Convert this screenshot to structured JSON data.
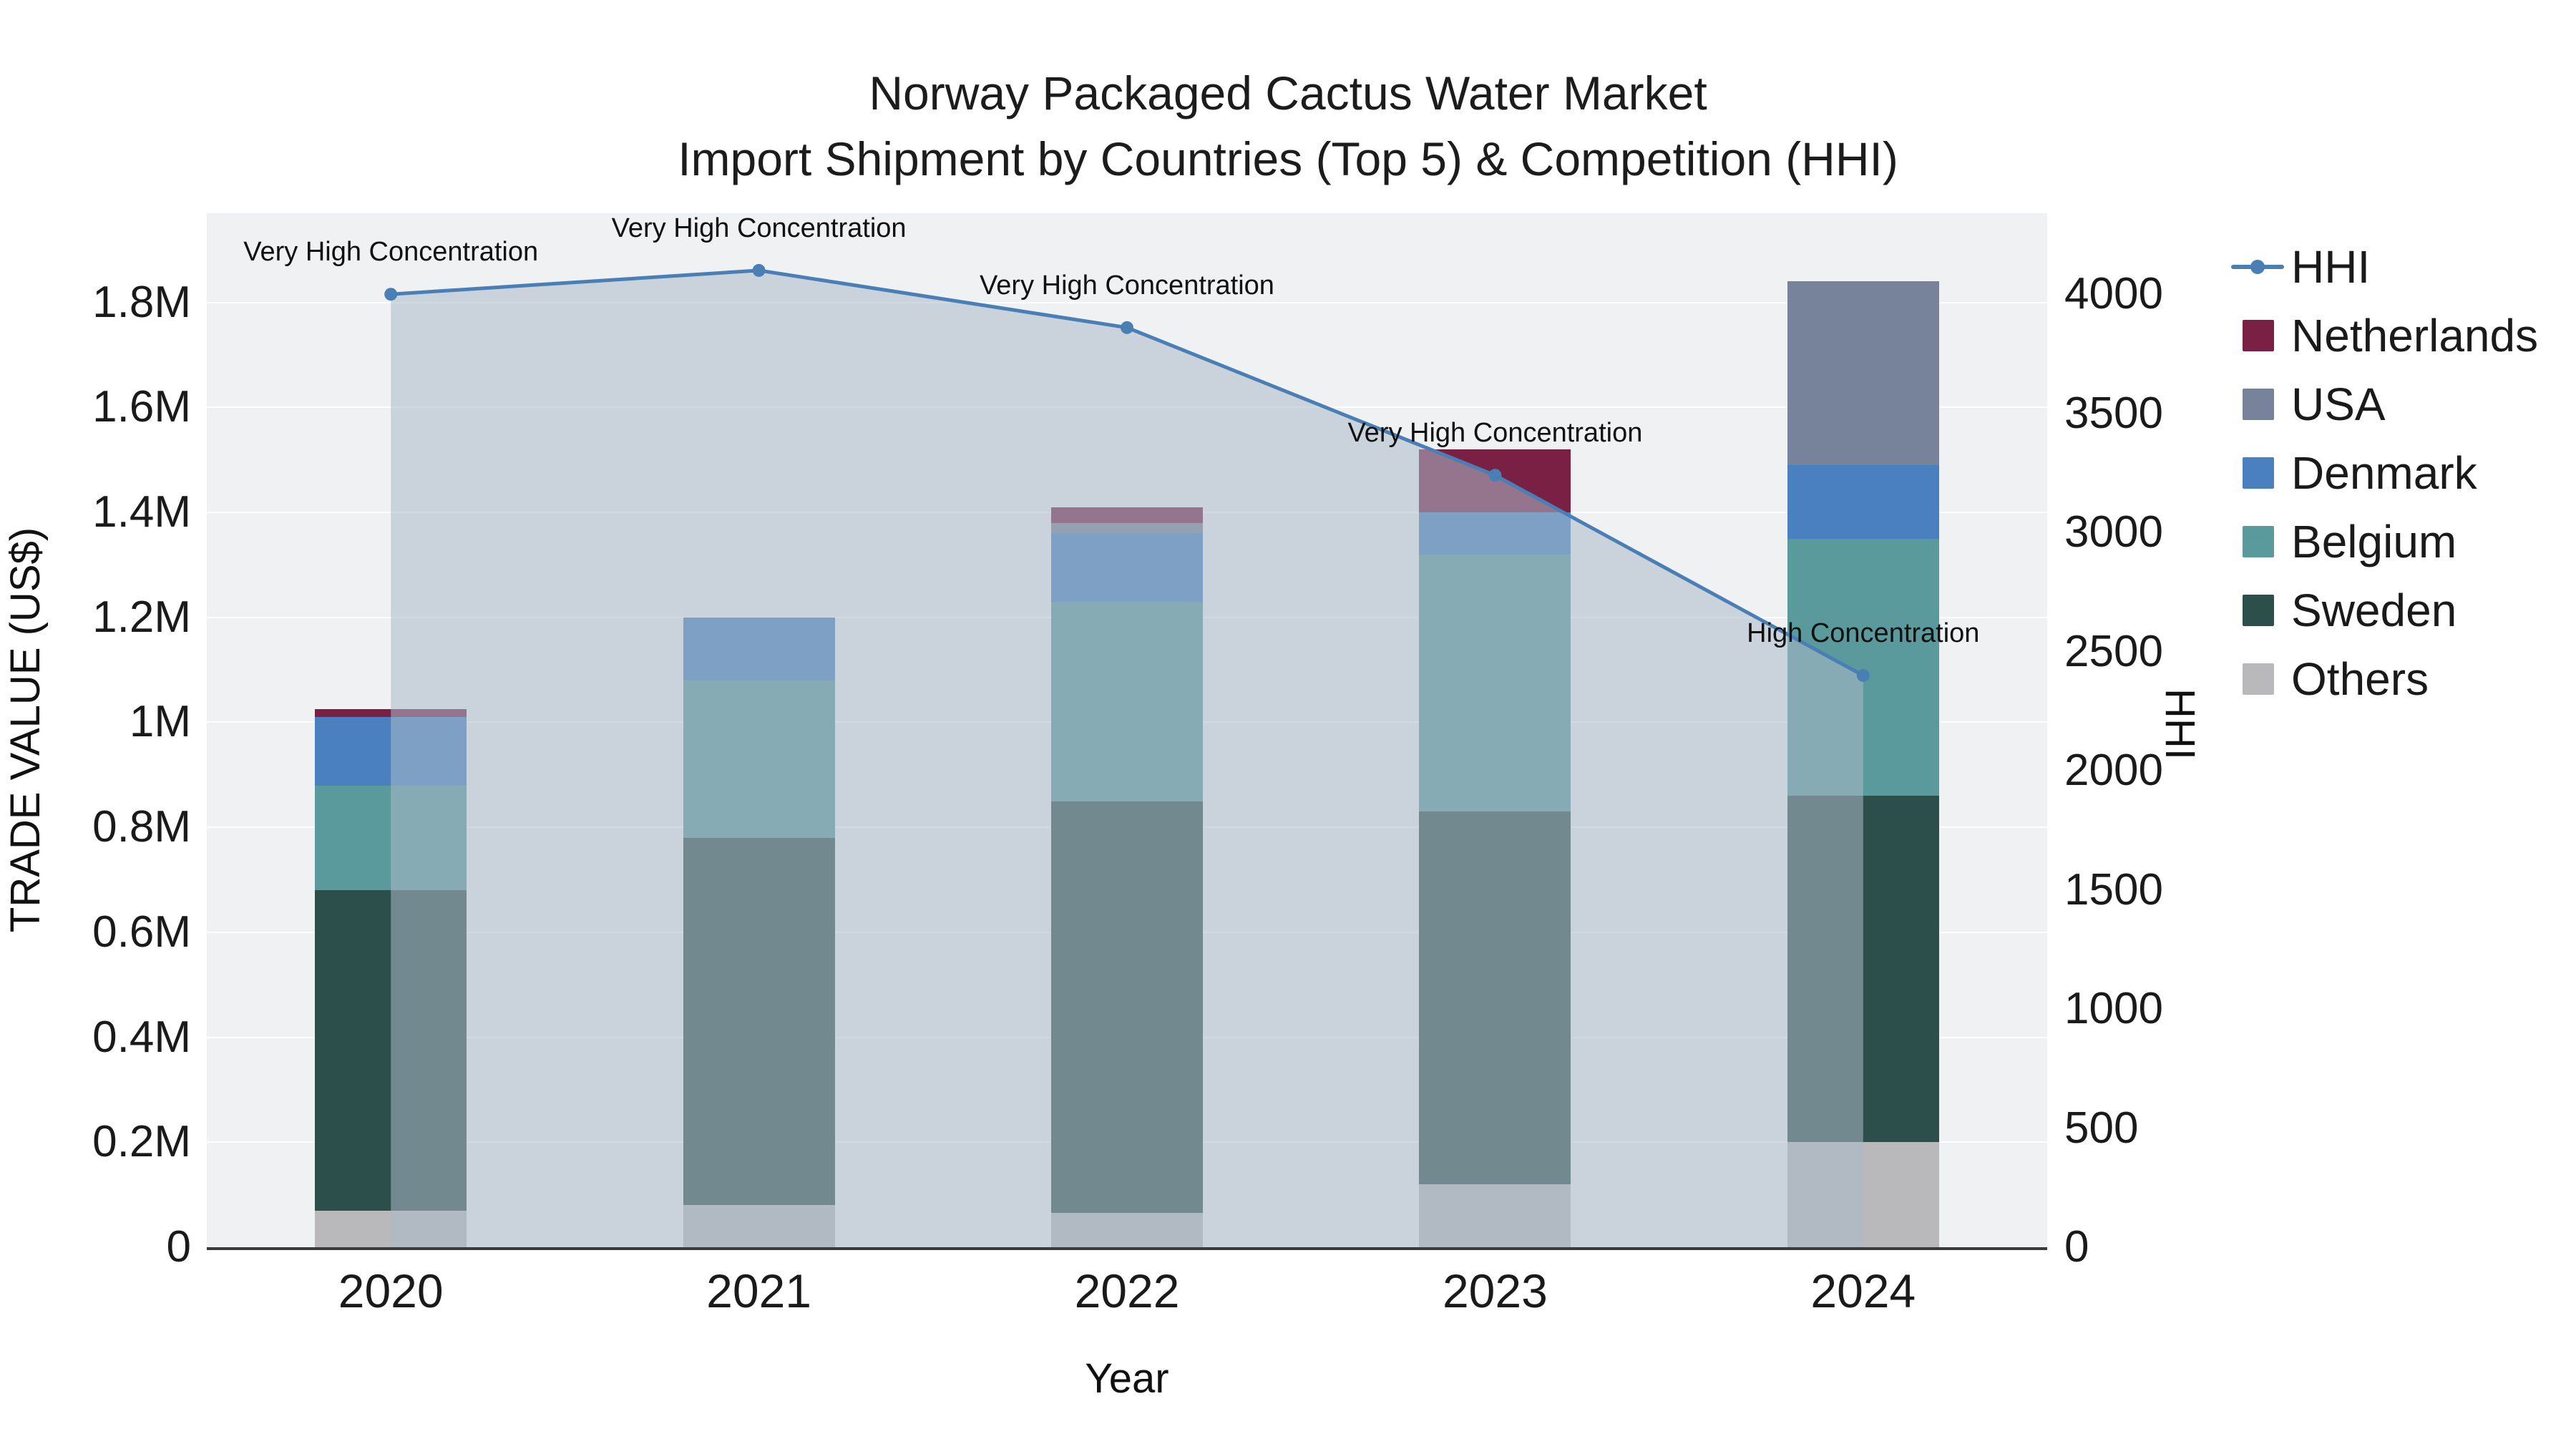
{
  "page_bg": "#ffffff",
  "title": {
    "line1": "Norway Packaged Cactus Water Market",
    "line2": "Import Shipment by Countries (Top 5) & Competition (HHI)"
  },
  "chart_data": {
    "type": "bar",
    "subtype": "stacked-bars-with-line-overlay",
    "title": "Norway Packaged Cactus Water Market Import Shipment by Countries (Top 5) & Competition (HHI)",
    "categories": [
      "2020",
      "2021",
      "2022",
      "2023",
      "2024"
    ],
    "series": [
      {
        "name": "Others",
        "color": "#b9b9bb",
        "values": [
          70000,
          80000,
          65000,
          120000,
          200000
        ]
      },
      {
        "name": "Sweden",
        "color": "#2c4f4b",
        "values": [
          610000,
          700000,
          785000,
          710000,
          660000
        ]
      },
      {
        "name": "Belgium",
        "color": "#5b9a9c",
        "values": [
          200000,
          300000,
          380000,
          490000,
          490000
        ]
      },
      {
        "name": "Denmark",
        "color": "#4a80c0",
        "values": [
          130000,
          120000,
          130000,
          80000,
          140000
        ]
      },
      {
        "name": "USA",
        "color": "#77839a",
        "values": [
          0,
          0,
          20000,
          0,
          350000
        ]
      },
      {
        "name": "Netherlands",
        "color": "#7a2045",
        "values": [
          15000,
          0,
          30000,
          120000,
          0
        ]
      }
    ],
    "totals": [
      1025000,
      1200000,
      1410000,
      1520000,
      1840000
    ],
    "line": {
      "name": "HHI",
      "axis": "right",
      "color": "#4a7fb5",
      "fill_color": "rgba(172,185,200,0.55)",
      "values": [
        4000,
        4100,
        3860,
        3240,
        2400
      ]
    },
    "annotations": [
      {
        "index": 0,
        "category": "2020",
        "text": "Very High Concentration"
      },
      {
        "index": 1,
        "category": "2021",
        "text": "Very High Concentration"
      },
      {
        "index": 2,
        "category": "2022",
        "text": "Very High Concentration"
      },
      {
        "index": 3,
        "category": "2023",
        "text": "Very High Concentration"
      },
      {
        "index": 4,
        "category": "2024",
        "text": "High Concentration"
      }
    ],
    "x": {
      "title": "Year"
    },
    "y_left": {
      "title": "TRADE VALUE (US$)",
      "max": 1970000,
      "tick_labels": [
        "0",
        "0.2M",
        "0.4M",
        "0.6M",
        "0.8M",
        "1M",
        "1.2M",
        "1.4M",
        "1.6M",
        "1.8M"
      ],
      "tick_values": [
        0,
        200000,
        400000,
        600000,
        800000,
        1000000,
        1200000,
        1400000,
        1600000,
        1800000
      ]
    },
    "y_right": {
      "title": "HHI",
      "max": 4340,
      "tick_labels": [
        "0",
        "500",
        "1000",
        "1500",
        "2000",
        "2500",
        "3000",
        "3500",
        "4000"
      ],
      "tick_values": [
        0,
        500,
        1000,
        1500,
        2000,
        2500,
        3000,
        3500,
        4000
      ]
    },
    "plot_bg": "#f0f1f2",
    "grid_color": "#ffffff",
    "axis_line_color": "#3a3a3a",
    "legend_position": "right",
    "grid": true
  },
  "legend": {
    "items": [
      {
        "label": "HHI",
        "type": "line",
        "color": "#4a7fb5"
      },
      {
        "label": "Netherlands",
        "type": "square",
        "color": "#7a2045"
      },
      {
        "label": "USA",
        "type": "square",
        "color": "#77839a"
      },
      {
        "label": "Denmark",
        "type": "square",
        "color": "#4a80c0"
      },
      {
        "label": "Belgium",
        "type": "square",
        "color": "#5b9a9c"
      },
      {
        "label": "Sweden",
        "type": "square",
        "color": "#2c4f4b"
      },
      {
        "label": "Others",
        "type": "square",
        "color": "#b9b9bb"
      }
    ]
  }
}
